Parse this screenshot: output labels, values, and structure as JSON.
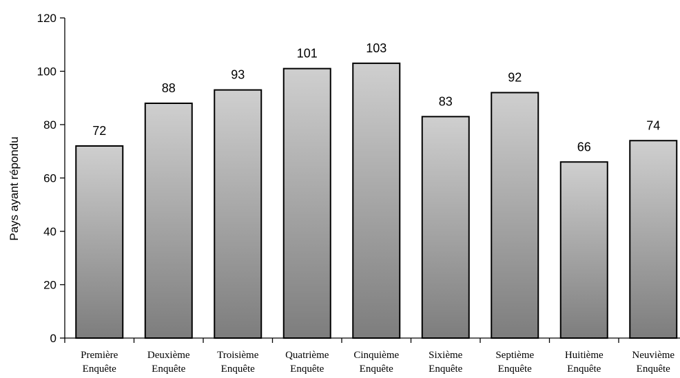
{
  "chart_data": {
    "type": "bar",
    "title": "",
    "xlabel": "",
    "ylabel": "Pays ayant répondu",
    "ylim": [
      0,
      120
    ],
    "yticks": [
      0,
      20,
      40,
      60,
      80,
      100,
      120
    ],
    "grid": false,
    "legend": "none",
    "categories": [
      [
        "Première",
        "Enquête"
      ],
      [
        "Deuxième",
        "Enquête"
      ],
      [
        "Troisième",
        "Enquête"
      ],
      [
        "Quatrième",
        "Enquête"
      ],
      [
        "Cinquième",
        "Enquête"
      ],
      [
        "Sixième",
        "Enquête"
      ],
      [
        "Septième",
        "Enquête"
      ],
      [
        "Huitième",
        "Enquête"
      ],
      [
        "Neuvième",
        "Enquête"
      ]
    ],
    "values": [
      72,
      88,
      93,
      101,
      103,
      83,
      92,
      66,
      74
    ],
    "colors": {
      "bar_top": "#cfcfcf",
      "bar_bottom": "#7d7d7d",
      "bar_stroke": "#000000",
      "axis": "#000000"
    }
  }
}
